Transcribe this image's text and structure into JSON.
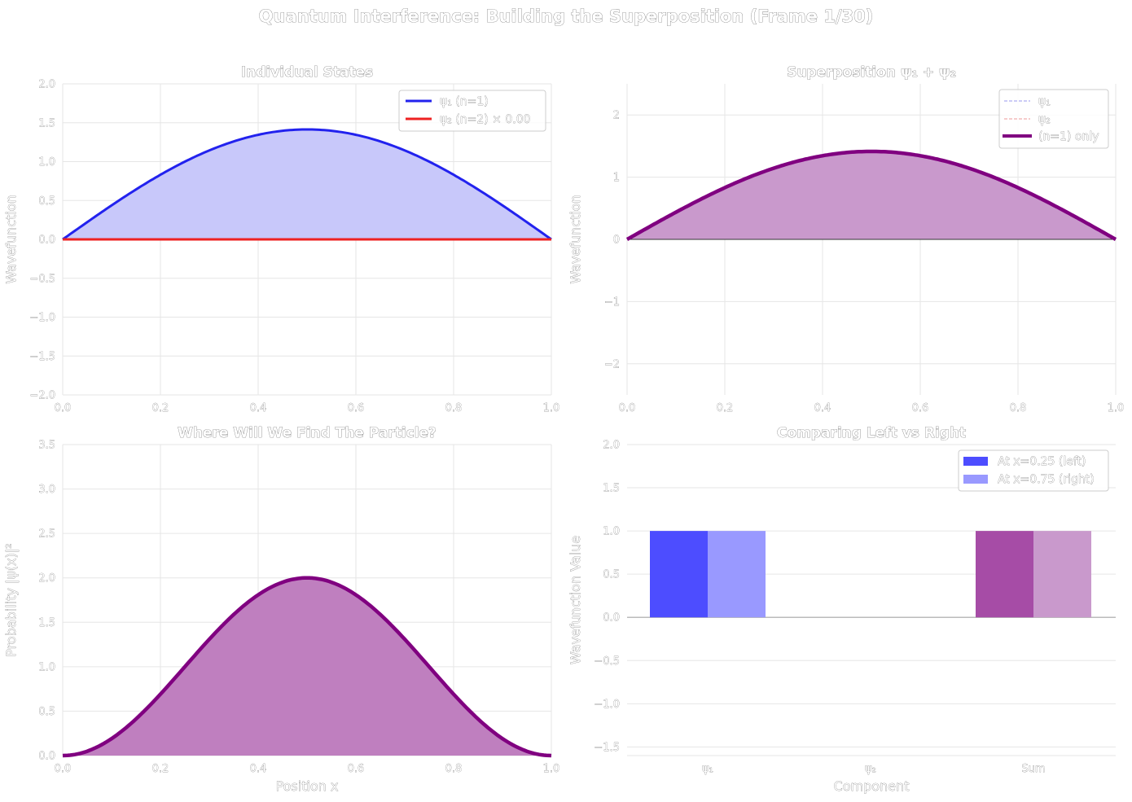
{
  "figure_title": "Quantum Interference: Building the Superposition (Frame 1/30)",
  "colors": {
    "psi1": "#2222ee",
    "psi2": "#ee2222",
    "superposition": "#800080",
    "grid": "#e6e6e6"
  },
  "chart_data": [
    {
      "id": "individual",
      "type": "line",
      "title": "Individual States",
      "xlabel": "",
      "ylabel": "Wavefunction",
      "xlim": [
        0,
        1
      ],
      "ylim": [
        -2,
        2
      ],
      "xticks": [
        "0.0",
        "0.2",
        "0.4",
        "0.6",
        "0.8",
        "1.0"
      ],
      "yticks": [
        "−2.0",
        "−1.5",
        "−1.0",
        "−0.5",
        "0.0",
        "0.5",
        "1.0",
        "1.5",
        "2.0"
      ],
      "grid": true,
      "legend_position": "top-right",
      "series": [
        {
          "name": "ψ₁ (n=1)",
          "function": "sqrt(2)*sin(pi*x)",
          "amplitude": 1.414,
          "color": "#2222ee",
          "fill": "#c8c8fa"
        },
        {
          "name": "ψ₂ (n=2) × 0.00",
          "function": "0.00*sqrt(2)*sin(2*pi*x)",
          "amplitude": 0.0,
          "color": "#ee2222"
        }
      ]
    },
    {
      "id": "superposition",
      "type": "line",
      "title": "Superposition ψ₁ + ψ₂",
      "xlabel": "",
      "ylabel": "Wavefunction",
      "xlim": [
        0,
        1
      ],
      "ylim": [
        -2.5,
        2.5
      ],
      "xticks": [
        "0.0",
        "0.2",
        "0.4",
        "0.6",
        "0.8",
        "1.0"
      ],
      "yticks": [
        "−2",
        "−1",
        "0",
        "1",
        "2"
      ],
      "grid": true,
      "legend_position": "top-right",
      "series": [
        {
          "name": "ψ₁",
          "style": "dashed",
          "color": "#9999ee"
        },
        {
          "name": "ψ₂",
          "style": "dashed",
          "color": "#ee9999"
        },
        {
          "name": "(n=1) only",
          "function": "sqrt(2)*sin(pi*x)",
          "amplitude": 1.414,
          "color": "#800080",
          "fill": "#c999cc"
        }
      ]
    },
    {
      "id": "probability",
      "type": "area",
      "title": "Where Will We Find The Particle?",
      "xlabel": "Position x",
      "ylabel": "Probability |ψ(x)|²",
      "xlim": [
        0,
        1
      ],
      "ylim": [
        0,
        3.5
      ],
      "xticks": [
        "0.0",
        "0.2",
        "0.4",
        "0.6",
        "0.8",
        "1.0"
      ],
      "yticks": [
        "0.0",
        "0.5",
        "1.0",
        "1.5",
        "2.0",
        "2.5",
        "3.0",
        "3.5"
      ],
      "grid": true,
      "series": [
        {
          "function": "2*sin(pi*x)^2",
          "peak": 2.0,
          "color": "#800080",
          "fill": "#bf7fbf"
        }
      ]
    },
    {
      "id": "comparison",
      "type": "bar",
      "title": "Comparing Left vs Right",
      "xlabel": "Component",
      "ylabel": "Wavefunction Value",
      "ylim": [
        -1.6,
        2.0
      ],
      "categories": [
        "ψ₁",
        "ψ₂",
        "Sum"
      ],
      "yticks": [
        "−1.5",
        "−1.0",
        "−0.5",
        "0.0",
        "0.5",
        "1.0",
        "1.5",
        "2.0"
      ],
      "grid": true,
      "legend_position": "top-right",
      "series": [
        {
          "name": "At x=0.25 (left)",
          "values": [
            1.0,
            0.0,
            1.0
          ],
          "colors": [
            "#4d4dff",
            "#4d4dff",
            "#a64ca6"
          ]
        },
        {
          "name": "At x=0.75 (right)",
          "values": [
            1.0,
            0.0,
            1.0
          ],
          "colors": [
            "#9999ff",
            "#9999ff",
            "#c999cc"
          ]
        }
      ]
    }
  ]
}
